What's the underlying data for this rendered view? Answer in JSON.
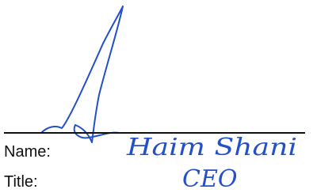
{
  "signature_block": {
    "name_label": "Name:",
    "name": "Haim Shani",
    "title_label": "Title:",
    "title": "CEO"
  }
}
